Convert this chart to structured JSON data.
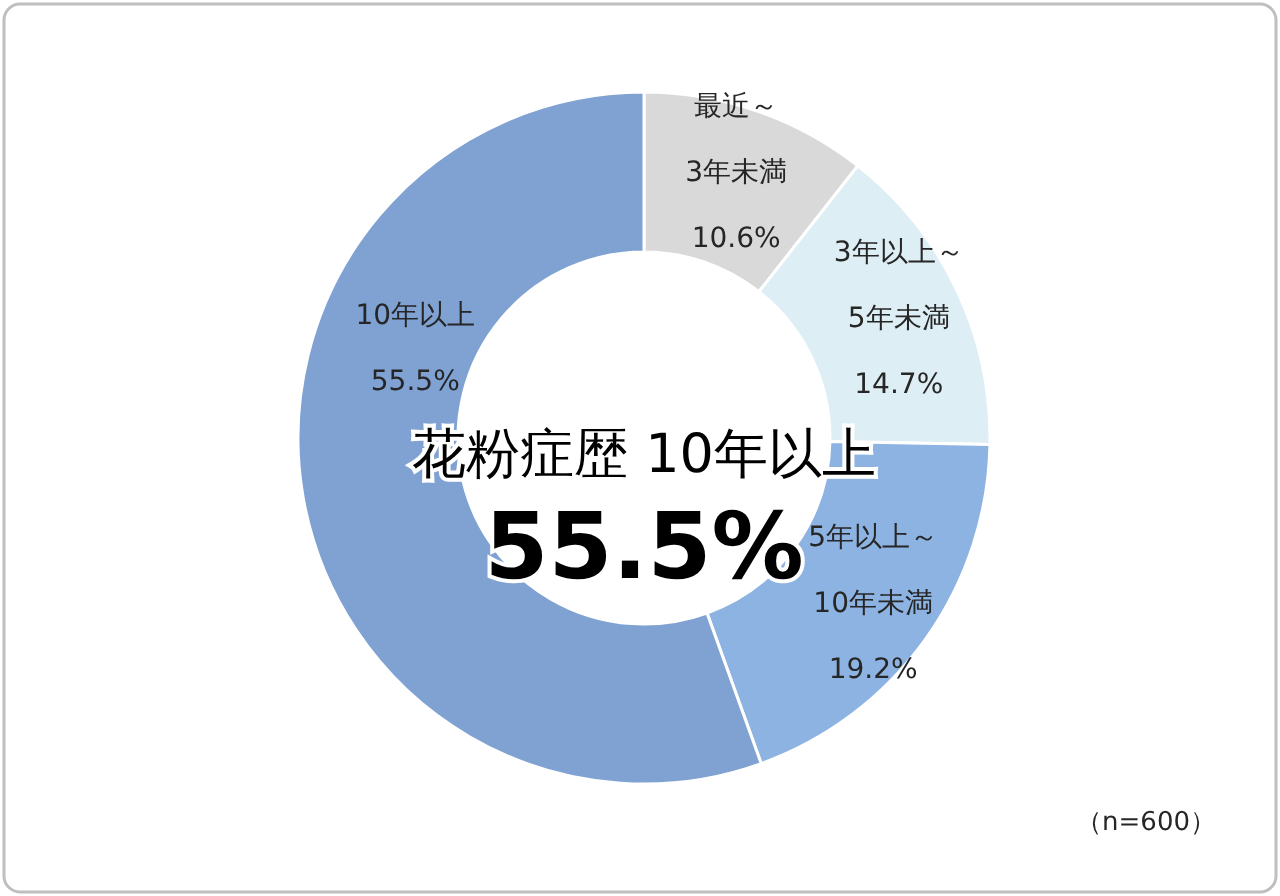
{
  "chart_data": {
    "type": "donut",
    "categories": [
      "最近～3年未満",
      "3年以上～5年未満",
      "5年以上～10年未満",
      "10年以上"
    ],
    "values": [
      10.6,
      14.7,
      19.2,
      55.5
    ],
    "colors": [
      "#d9d9d9",
      "#deeef5",
      "#8db3e2",
      "#7fa2d2"
    ],
    "value_labels": [
      "10.6%",
      "14.7%",
      "19.2%",
      "55.5%"
    ],
    "annotations": [
      "花粉症歴 10年以上",
      "55.5%",
      "（n=600）"
    ]
  }
}
